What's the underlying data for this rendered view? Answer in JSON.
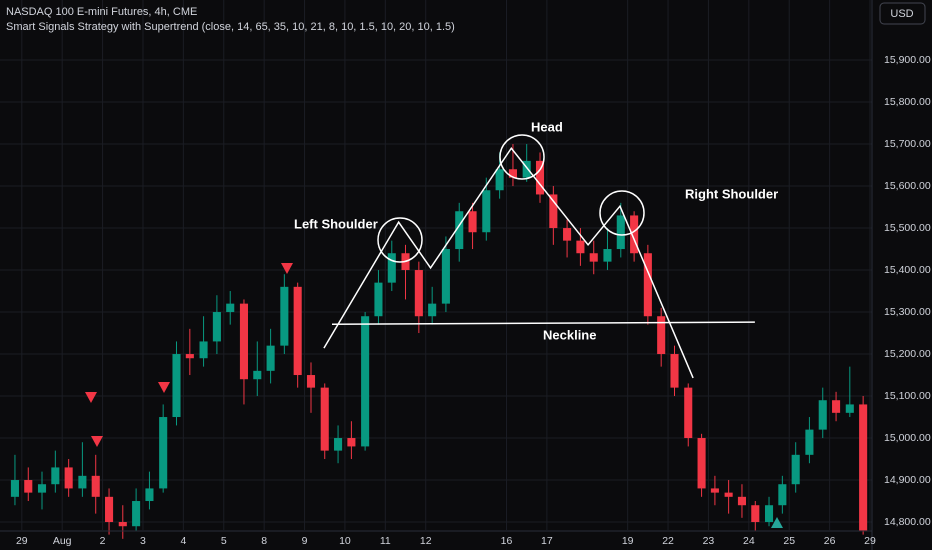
{
  "chart_data": {
    "type": "candlestick",
    "title": "NASDAQ 100 E-mini Futures, 4h, CME",
    "subtitle": "Smart Signals Strategy with Supertrend (close, 14, 65, 35, 10, 21, 8, 10, 1.5, 10, 20, 10, 1.5)",
    "currency": "USD",
    "up_color": "#089981",
    "down_color": "#f23645",
    "grid": true,
    "xlim": [
      -0.54,
      21.0
    ],
    "ylim": [
      14781,
      16043
    ],
    "xticks": [
      {
        "value": 0,
        "label": "29"
      },
      {
        "value": 1,
        "label": "Aug"
      },
      {
        "value": 2,
        "label": "2"
      },
      {
        "value": 3,
        "label": "3"
      },
      {
        "value": 4,
        "label": "4"
      },
      {
        "value": 5,
        "label": "5"
      },
      {
        "value": 6,
        "label": "8"
      },
      {
        "value": 7,
        "label": "9"
      },
      {
        "value": 8,
        "label": "10"
      },
      {
        "value": 9,
        "label": "11"
      },
      {
        "value": 10,
        "label": "12"
      },
      {
        "value": 12,
        "label": "16"
      },
      {
        "value": 13,
        "label": "17"
      },
      {
        "value": 15,
        "label": "19"
      },
      {
        "value": 16,
        "label": "22"
      },
      {
        "value": 17,
        "label": "23"
      },
      {
        "value": 18,
        "label": "24"
      },
      {
        "value": 19,
        "label": "25"
      },
      {
        "value": 20,
        "label": "26"
      },
      {
        "value": 21,
        "label": "29"
      }
    ],
    "yticks": [
      {
        "value": 14800,
        "label": "14,800.00"
      },
      {
        "value": 14900,
        "label": "14,900.00"
      },
      {
        "value": 15000,
        "label": "15,000.00"
      },
      {
        "value": 15100,
        "label": "15,100.00"
      },
      {
        "value": 15200,
        "label": "15,200.00"
      },
      {
        "value": 15300,
        "label": "15,300.00"
      },
      {
        "value": 15400,
        "label": "15,400.00"
      },
      {
        "value": 15500,
        "label": "15,500.00"
      },
      {
        "value": 15600,
        "label": "15,600.00"
      },
      {
        "value": 15700,
        "label": "15,700.00"
      },
      {
        "value": 15800,
        "label": "15,800.00"
      },
      {
        "value": 15900,
        "label": "15,900.00"
      }
    ],
    "x": [
      -0.17,
      0.16,
      0.5,
      0.83,
      1.16,
      1.5,
      1.83,
      2.16,
      2.5,
      2.83,
      3.16,
      3.5,
      3.83,
      4.16,
      4.5,
      4.83,
      5.16,
      5.5,
      5.83,
      6.16,
      6.5,
      6.83,
      7.16,
      7.5,
      7.83,
      8.16,
      8.5,
      8.83,
      9.16,
      9.5,
      9.83,
      10.16,
      10.5,
      10.83,
      11.16,
      11.5,
      11.83,
      12.16,
      12.5,
      12.83,
      13.16,
      13.5,
      13.83,
      14.16,
      14.5,
      14.83,
      15.16,
      15.5,
      15.83,
      16.16,
      16.5,
      16.83,
      17.16,
      17.5,
      17.83,
      18.16,
      18.5,
      18.83,
      19.16,
      19.5,
      19.83,
      20.16,
      20.5,
      20.83
    ],
    "open": [
      14860,
      14900,
      14870,
      14890,
      14930,
      14880,
      14910,
      14860,
      14800,
      14790,
      14850,
      14880,
      15050,
      15200,
      15190,
      15230,
      15300,
      15320,
      15140,
      15160,
      15220,
      15360,
      15150,
      15120,
      14970,
      15000,
      14980,
      15290,
      15370,
      15440,
      15400,
      15290,
      15320,
      15450,
      15540,
      15490,
      15590,
      15640,
      15620,
      15660,
      15580,
      15500,
      15470,
      15440,
      15420,
      15450,
      15530,
      15440,
      15290,
      15200,
      15120,
      15000,
      14880,
      14870,
      14860,
      14840,
      14800,
      14840,
      14890,
      14960,
      15020,
      15090,
      15060,
      15080
    ],
    "high": [
      14960,
      14930,
      14920,
      14970,
      14950,
      14990,
      14960,
      14880,
      14840,
      14880,
      14920,
      15080,
      15230,
      15260,
      15290,
      15340,
      15350,
      15330,
      15230,
      15260,
      15390,
      15370,
      15180,
      15130,
      15030,
      15040,
      15300,
      15400,
      15470,
      15460,
      15420,
      15360,
      15480,
      15560,
      15560,
      15620,
      15680,
      15700,
      15700,
      15680,
      15600,
      15520,
      15500,
      15470,
      15500,
      15560,
      15540,
      15460,
      15310,
      15220,
      15130,
      15010,
      14910,
      14900,
      14890,
      14850,
      14860,
      14910,
      14990,
      15050,
      15120,
      15110,
      15170,
      15100
    ],
    "low": [
      14840,
      14850,
      14830,
      14870,
      14860,
      14860,
      14820,
      14770,
      14760,
      14780,
      14830,
      14870,
      15030,
      15150,
      15170,
      15200,
      15270,
      15080,
      15100,
      15130,
      15200,
      15120,
      15060,
      14950,
      14940,
      14950,
      14970,
      15270,
      15350,
      15330,
      15250,
      15270,
      15300,
      15420,
      15450,
      15470,
      15570,
      15600,
      15610,
      15560,
      15460,
      15430,
      15410,
      15390,
      15400,
      15430,
      15420,
      15270,
      15170,
      15100,
      14980,
      14860,
      14840,
      14820,
      14810,
      14780,
      14790,
      14820,
      14870,
      14940,
      15000,
      15040,
      15050,
      14770
    ],
    "close": [
      14900,
      14870,
      14890,
      14930,
      14880,
      14910,
      14860,
      14800,
      14790,
      14850,
      14880,
      15050,
      15200,
      15190,
      15230,
      15300,
      15320,
      15140,
      15160,
      15220,
      15360,
      15150,
      15120,
      14970,
      15000,
      14980,
      15290,
      15370,
      15440,
      15400,
      15290,
      15320,
      15450,
      15540,
      15490,
      15590,
      15640,
      15620,
      15660,
      15580,
      15500,
      15470,
      15440,
      15420,
      15450,
      15530,
      15440,
      15290,
      15200,
      15120,
      15000,
      14880,
      14870,
      14860,
      14840,
      14800,
      14840,
      14890,
      14960,
      15020,
      15090,
      15060,
      15080,
      14780
    ],
    "pattern_line": {
      "x": [
        7.48,
        9.33,
        10.12,
        12.12,
        14.02,
        14.81,
        16.62
      ],
      "price": [
        15214,
        15514,
        15405,
        15690,
        15460,
        15552,
        15143
      ]
    },
    "neckline_line": {
      "x": [
        7.68,
        18.15
      ],
      "price": [
        15271,
        15276
      ]
    },
    "annotations": {
      "left_shoulder": "Left Shoulder",
      "head": "Head",
      "right_shoulder": "Right Shoulder",
      "neckline": "Neckline"
    }
  }
}
